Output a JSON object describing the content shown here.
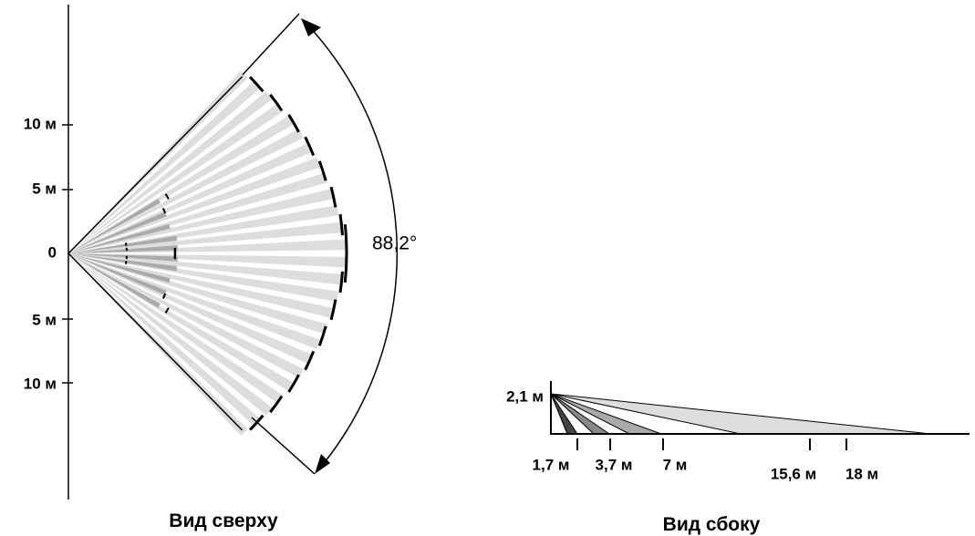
{
  "top_view": {
    "caption": "Вид сверху",
    "axis_labels": [
      "10 м",
      "5 м",
      "0",
      "5 м",
      "10 м"
    ],
    "angle_label": "88,2°"
  },
  "side_view": {
    "caption": "Вид сбоку",
    "height_label": "2,1 м",
    "distance_labels": [
      "1,7 м",
      "3,7 м",
      "7 м",
      "15,6 м",
      "18 м"
    ]
  }
}
